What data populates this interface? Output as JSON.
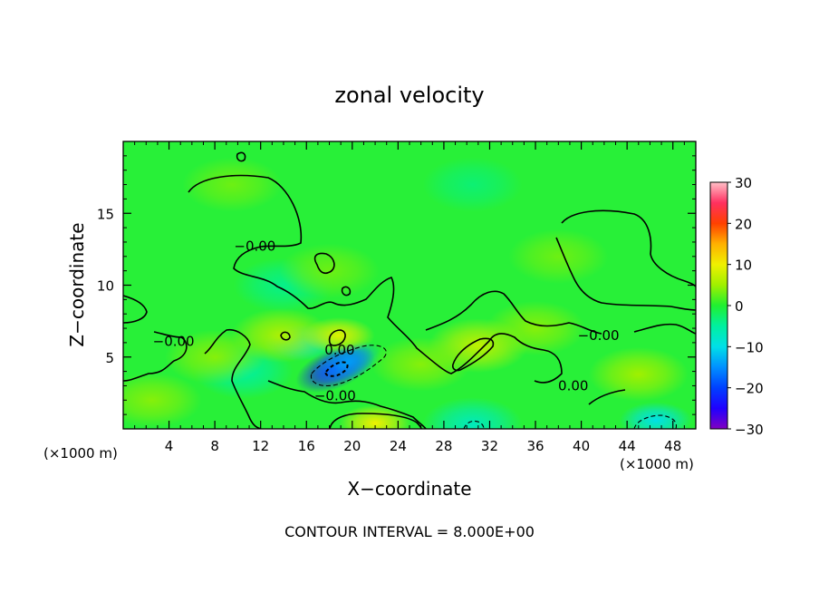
{
  "chart_data": {
    "type": "heatmap",
    "title": "zonal velocity",
    "xlabel": "X−coordinate",
    "ylabel": "Z−coordinate",
    "x_unit": "(×1000 m)",
    "z_unit": "(×1000 m)",
    "footer": "CONTOUR INTERVAL = 8.000E+00",
    "xlim": [
      0,
      50
    ],
    "ylim": [
      0,
      20
    ],
    "x_ticks": [
      4,
      8,
      12,
      16,
      20,
      24,
      28,
      32,
      36,
      40,
      44,
      48
    ],
    "y_ticks": [
      5,
      10,
      15
    ],
    "colorbar": {
      "range": [
        -30,
        30
      ],
      "ticks": [
        30,
        20,
        10,
        0,
        -10,
        -20,
        -30
      ],
      "tick_labels": [
        "30",
        "20",
        "10",
        "0",
        "−10",
        "−20",
        "−30"
      ],
      "stops": [
        {
          "v": -30,
          "c": "#8000c0"
        },
        {
          "v": -25,
          "c": "#2000ff"
        },
        {
          "v": -20,
          "c": "#0040ff"
        },
        {
          "v": -15,
          "c": "#0090ff"
        },
        {
          "v": -10,
          "c": "#00e0e8"
        },
        {
          "v": -5,
          "c": "#00f0a0"
        },
        {
          "v": 0,
          "c": "#20f030"
        },
        {
          "v": 5,
          "c": "#a0f000"
        },
        {
          "v": 10,
          "c": "#f0f000"
        },
        {
          "v": 15,
          "c": "#ffb000"
        },
        {
          "v": 20,
          "c": "#ff4000"
        },
        {
          "v": 25,
          "c": "#ff3060"
        },
        {
          "v": 30,
          "c": "#ffc0c8"
        }
      ]
    },
    "contour_interval": 8.0,
    "contour_labels": [
      {
        "text": "−0.00",
        "x": 11.5,
        "z": 12.7
      },
      {
        "text": "−0.00",
        "x": 4.4,
        "z": 6.1
      },
      {
        "text": "0.00",
        "x": 18.9,
        "z": 5.5
      },
      {
        "text": "−0.00",
        "x": 18.5,
        "z": 2.3
      },
      {
        "text": "−0.00",
        "x": 41.5,
        "z": 6.5
      },
      {
        "text": "0.00",
        "x": 39.3,
        "z": 3.0
      }
    ],
    "features": [
      {
        "kind": "min",
        "x": 18.5,
        "z": 4.2,
        "value": -24
      },
      {
        "kind": "neg",
        "x": 19.5,
        "z": 4.6,
        "value": -14
      },
      {
        "kind": "neg",
        "x": 15.5,
        "z": 6.0,
        "value": -9
      },
      {
        "kind": "neg",
        "x": 10.5,
        "z": 4.0,
        "value": -5
      },
      {
        "kind": "neg",
        "x": 46.5,
        "z": 0.6,
        "value": -10
      },
      {
        "kind": "neg",
        "x": 30.5,
        "z": 0.3,
        "value": -7
      },
      {
        "kind": "neg",
        "x": 30.5,
        "z": 17.0,
        "value": -3
      },
      {
        "kind": "neg",
        "x": 14.0,
        "z": 10.0,
        "value": -4
      },
      {
        "kind": "max",
        "x": 22.0,
        "z": 0.4,
        "value": 10
      },
      {
        "kind": "max",
        "x": 18.8,
        "z": 6.5,
        "value": 9
      },
      {
        "kind": "max",
        "x": 31.0,
        "z": 5.8,
        "value": 7
      },
      {
        "kind": "pos",
        "x": 13.8,
        "z": 6.5,
        "value": 6
      },
      {
        "kind": "pos",
        "x": 45.0,
        "z": 3.8,
        "value": 5
      },
      {
        "kind": "pos",
        "x": 8.0,
        "z": 5.0,
        "value": 4
      },
      {
        "kind": "pos",
        "x": 2.5,
        "z": 2.0,
        "value": 4
      },
      {
        "kind": "pos",
        "x": 26.0,
        "z": 4.5,
        "value": 4
      },
      {
        "kind": "pos",
        "x": 36.0,
        "z": 7.0,
        "value": 4
      },
      {
        "kind": "pos",
        "x": 38.0,
        "z": 12.0,
        "value": 3
      },
      {
        "kind": "pos",
        "x": 9.5,
        "z": 17.0,
        "value": 3
      },
      {
        "kind": "pos",
        "x": 18.0,
        "z": 11.0,
        "value": 3
      }
    ]
  }
}
